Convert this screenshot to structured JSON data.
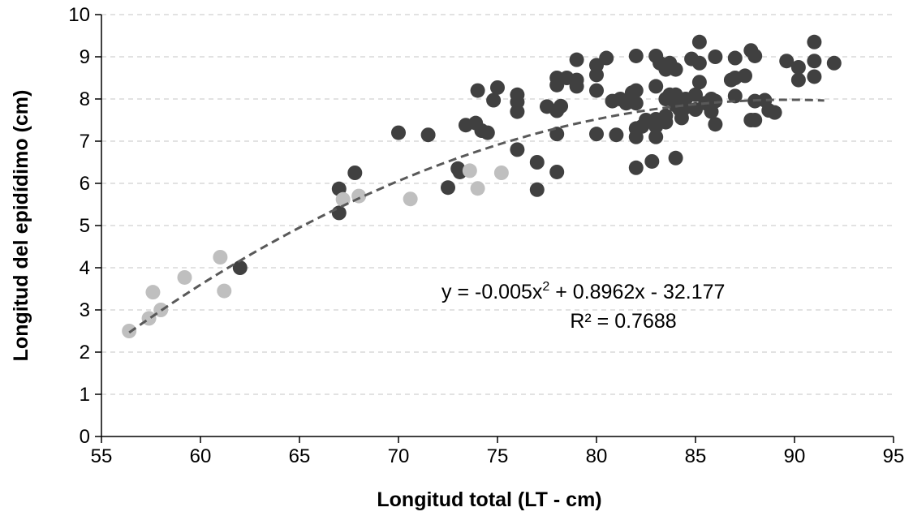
{
  "chart_data": {
    "type": "scatter",
    "title": "",
    "xlabel": "Longitud total (LT - cm)",
    "ylabel": "Longitud del epidídimo (cm)",
    "xlim": [
      55,
      95
    ],
    "ylim": [
      0,
      10
    ],
    "x_ticks": [
      "55",
      "60",
      "65",
      "70",
      "75",
      "80",
      "85",
      "90",
      "95"
    ],
    "y_ticks": [
      "0",
      "1",
      "2",
      "3",
      "4",
      "5",
      "6",
      "7",
      "8",
      "9",
      "10"
    ],
    "grid": "horizontal dashed",
    "colors": {
      "dark": "#404040",
      "light": "#bfbfbf",
      "trend": "#595959",
      "grid": "#d9d9d9"
    },
    "series": [
      {
        "color": "#404040",
        "points": [
          [
            62.0,
            4.0
          ],
          [
            67.0,
            5.3
          ],
          [
            67.0,
            5.87
          ],
          [
            67.8,
            6.25
          ],
          [
            70.0,
            7.2
          ],
          [
            71.5,
            7.15
          ],
          [
            72.5,
            5.9
          ],
          [
            73.0,
            6.35
          ],
          [
            73.1,
            6.27
          ],
          [
            73.4,
            7.38
          ],
          [
            73.9,
            7.43
          ],
          [
            74.0,
            8.2
          ],
          [
            74.2,
            7.25
          ],
          [
            74.5,
            7.2
          ],
          [
            74.8,
            7.97
          ],
          [
            75.0,
            8.27
          ],
          [
            76.0,
            6.8
          ],
          [
            76.0,
            7.7
          ],
          [
            76.0,
            7.93
          ],
          [
            76.0,
            8.1
          ],
          [
            77.0,
            5.85
          ],
          [
            77.0,
            6.5
          ],
          [
            77.5,
            7.82
          ],
          [
            78.0,
            6.27
          ],
          [
            78.0,
            7.17
          ],
          [
            78.0,
            7.72
          ],
          [
            78.0,
            8.33
          ],
          [
            78.0,
            8.5
          ],
          [
            78.2,
            7.83
          ],
          [
            78.5,
            8.5
          ],
          [
            79.0,
            8.3
          ],
          [
            79.0,
            8.45
          ],
          [
            79.0,
            8.93
          ],
          [
            80.0,
            7.17
          ],
          [
            80.0,
            8.2
          ],
          [
            80.0,
            8.57
          ],
          [
            80.0,
            8.8
          ],
          [
            80.5,
            8.97
          ],
          [
            80.8,
            7.95
          ],
          [
            81.0,
            7.15
          ],
          [
            81.2,
            8.0
          ],
          [
            81.5,
            7.9
          ],
          [
            81.8,
            8.15
          ],
          [
            82.0,
            6.37
          ],
          [
            82.0,
            7.1
          ],
          [
            82.0,
            7.3
          ],
          [
            82.0,
            7.9
          ],
          [
            82.0,
            8.2
          ],
          [
            82.0,
            9.02
          ],
          [
            82.3,
            7.35
          ],
          [
            82.5,
            7.5
          ],
          [
            82.8,
            6.52
          ],
          [
            83.0,
            7.1
          ],
          [
            83.0,
            7.35
          ],
          [
            83.0,
            7.52
          ],
          [
            83.0,
            8.3
          ],
          [
            83.0,
            9.02
          ],
          [
            83.2,
            8.85
          ],
          [
            83.5,
            7.45
          ],
          [
            83.5,
            7.6
          ],
          [
            83.5,
            8.0
          ],
          [
            83.5,
            8.7
          ],
          [
            83.7,
            8.1
          ],
          [
            83.7,
            8.85
          ],
          [
            84.0,
            6.6
          ],
          [
            84.0,
            7.85
          ],
          [
            84.0,
            8.1
          ],
          [
            84.0,
            8.7
          ],
          [
            84.2,
            7.75
          ],
          [
            84.3,
            7.55
          ],
          [
            84.5,
            7.8
          ],
          [
            84.5,
            8.0
          ],
          [
            84.8,
            8.95
          ],
          [
            85.0,
            7.75
          ],
          [
            85.0,
            8.1
          ],
          [
            85.2,
            8.4
          ],
          [
            85.2,
            8.85
          ],
          [
            85.2,
            9.35
          ],
          [
            85.5,
            7.9
          ],
          [
            85.8,
            7.7
          ],
          [
            85.8,
            8.0
          ],
          [
            86.0,
            7.4
          ],
          [
            86.0,
            7.95
          ],
          [
            86.0,
            9.0
          ],
          [
            86.8,
            8.45
          ],
          [
            87.0,
            8.07
          ],
          [
            87.0,
            8.5
          ],
          [
            87.0,
            8.97
          ],
          [
            87.5,
            8.55
          ],
          [
            87.8,
            7.5
          ],
          [
            87.8,
            9.15
          ],
          [
            88.0,
            7.5
          ],
          [
            88.0,
            7.95
          ],
          [
            88.0,
            9.02
          ],
          [
            88.5,
            7.97
          ],
          [
            88.7,
            7.73
          ],
          [
            89.0,
            7.68
          ],
          [
            89.6,
            8.9
          ],
          [
            90.2,
            8.45
          ],
          [
            90.2,
            8.75
          ],
          [
            91.0,
            8.53
          ],
          [
            91.0,
            8.9
          ],
          [
            91.0,
            9.35
          ],
          [
            92.0,
            8.85
          ]
        ]
      },
      {
        "color": "#bfbfbf",
        "points": [
          [
            56.4,
            2.5
          ],
          [
            57.4,
            2.8
          ],
          [
            57.6,
            3.42
          ],
          [
            58.0,
            3.0
          ],
          [
            59.2,
            3.77
          ],
          [
            61.0,
            4.25
          ],
          [
            61.2,
            3.45
          ],
          [
            67.2,
            5.62
          ],
          [
            68.0,
            5.7
          ],
          [
            70.6,
            5.63
          ],
          [
            73.6,
            6.3
          ],
          [
            74.0,
            5.88
          ],
          [
            75.2,
            6.25
          ]
        ]
      }
    ],
    "trendline": {
      "type": "polynomial",
      "coefficients": [
        -0.005,
        0.8962,
        -32.177
      ],
      "x_range": [
        56.4,
        91.5
      ],
      "equation_prefix": "y = -0.005x",
      "equation_exponent": "2",
      "equation_suffix": " + 0.8962x - 32.177",
      "r_squared_label": "R² = 0.7688"
    }
  }
}
